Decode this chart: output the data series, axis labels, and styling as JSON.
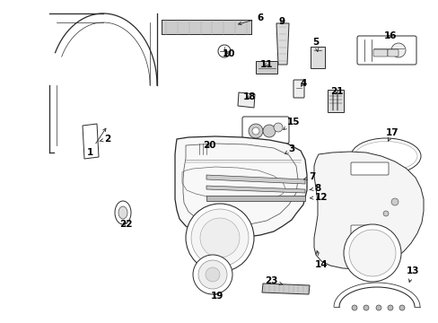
{
  "bg_color": "#ffffff",
  "line_color": "#2a2a2a",
  "label_color": "#000000",
  "fig_width": 4.89,
  "fig_height": 3.6
}
